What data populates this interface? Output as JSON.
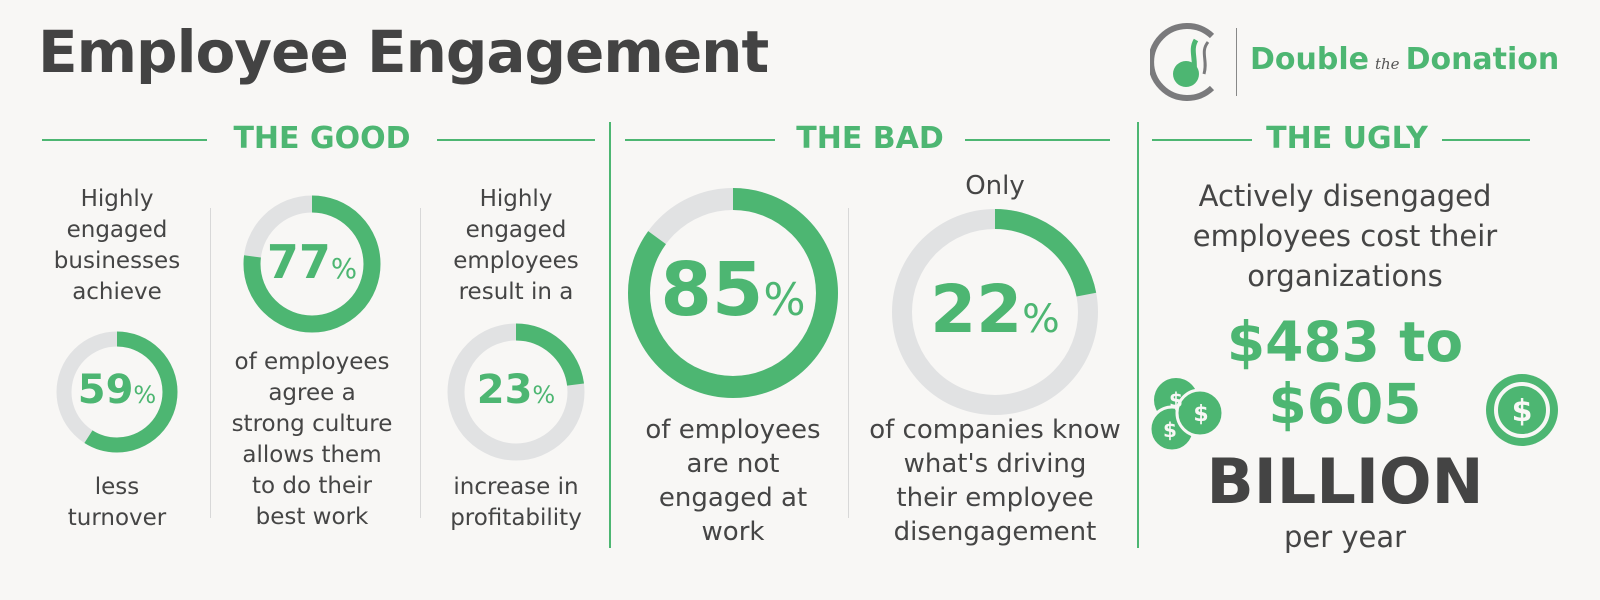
{
  "title": "Employee Engagement",
  "logo": {
    "word1": "Double",
    "word2": "the",
    "word3": "Donation"
  },
  "sections": {
    "good": "THE GOOD",
    "bad": "THE BAD",
    "ugly": "THE UGLY"
  },
  "colors": {
    "accent": "#4db672",
    "ring": "#e1e2e3",
    "text": "#454545"
  },
  "stats": [
    {
      "value": 59,
      "unit": "%",
      "before": "Highly\nengaged\nbusinesses\nachieve",
      "after": "less\nturnover"
    },
    {
      "value": 77,
      "unit": "%",
      "before": "",
      "after": "of employees\nagree a\nstrong culture\nallows them\nto do their\nbest work"
    },
    {
      "value": 23,
      "unit": "%",
      "before": "Highly\nengaged\nemployees\nresult in a",
      "after": "increase in\nprofitability"
    },
    {
      "value": 85,
      "unit": "%",
      "before": "",
      "after": "of employees\nare not\nengaged at\nwork"
    },
    {
      "value": 22,
      "unit": "%",
      "before": "Only",
      "after": "of companies know\nwhat's driving\ntheir employee\ndisengagement"
    }
  ],
  "ugly": {
    "intro": "Actively disengaged\nemployees cost their\norganizations",
    "amount": "$483 to\n$605",
    "unit": "BILLION",
    "period": "per year",
    "icons": [
      "coins-icon",
      "dollar-coin-icon"
    ]
  }
}
